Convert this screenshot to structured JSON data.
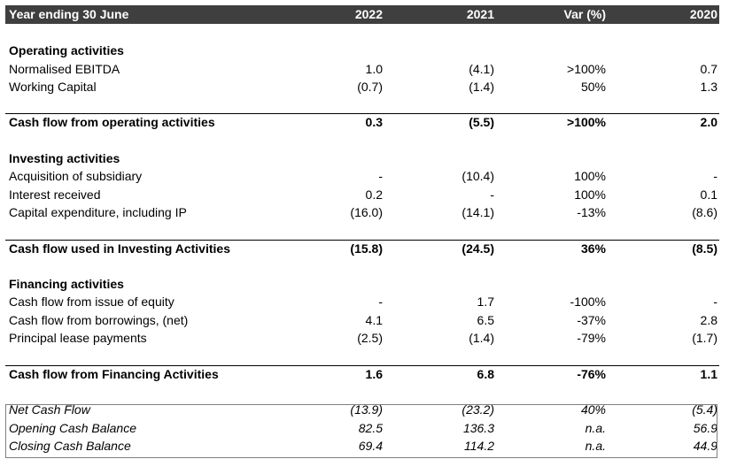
{
  "header": {
    "label": "Year ending 30 June",
    "col_2022": "2022",
    "col_2021": "2021",
    "col_var": "Var (%)",
    "col_2020": "2020"
  },
  "operating": {
    "title": "Operating activities",
    "rows": [
      {
        "label": "Normalised EBITDA",
        "v2022": "1.0",
        "v2021": "(4.1)",
        "var": ">100%",
        "v2020": "0.7"
      },
      {
        "label": "Working Capital",
        "v2022": "(0.7)",
        "v2021": "(1.4)",
        "var": "50%",
        "v2020": "1.3"
      }
    ],
    "total": {
      "label": "Cash flow from operating activities",
      "v2022": "0.3",
      "v2021": "(5.5)",
      "var": ">100%",
      "v2020": "2.0"
    }
  },
  "investing": {
    "title": "Investing activities",
    "rows": [
      {
        "label": "Acquisition of subsidiary",
        "v2022": "-",
        "v2021": "(10.4)",
        "var": "100%",
        "v2020": "-"
      },
      {
        "label": "Interest received",
        "v2022": "0.2",
        "v2021": "-",
        "var": "100%",
        "v2020": "0.1"
      },
      {
        "label": "Capital expenditure, including IP",
        "v2022": "(16.0)",
        "v2021": "(14.1)",
        "var": "-13%",
        "v2020": "(8.6)"
      }
    ],
    "total": {
      "label": "Cash flow used in Investing Activities",
      "v2022": "(15.8)",
      "v2021": "(24.5)",
      "var": "36%",
      "v2020": "(8.5)"
    }
  },
  "financing": {
    "title": "Financing activities",
    "rows": [
      {
        "label": "Cash flow from issue of equity",
        "v2022": "-",
        "v2021": "1.7",
        "var": "-100%",
        "v2020": "-"
      },
      {
        "label": "Cash flow from borrowings, (net)",
        "v2022": "4.1",
        "v2021": "6.5",
        "var": "-37%",
        "v2020": "2.8"
      },
      {
        "label": "Principal lease payments",
        "v2022": "(2.5)",
        "v2021": "(1.4)",
        "var": "-79%",
        "v2020": "(1.7)"
      }
    ],
    "total": {
      "label": "Cash flow from Financing Activities",
      "v2022": "1.6",
      "v2021": "6.8",
      "var": "-76%",
      "v2020": "1.1"
    }
  },
  "summary": {
    "rows": [
      {
        "label": "Net Cash Flow",
        "v2022": "(13.9)",
        "v2021": "(23.2)",
        "var": "40%",
        "v2020": "(5.4)"
      },
      {
        "label": "Opening Cash Balance",
        "v2022": "82.5",
        "v2021": "136.3",
        "var": "n.a.",
        "v2020": "56.9"
      },
      {
        "label": "Closing Cash Balance",
        "v2022": "69.4",
        "v2021": "114.2",
        "var": "n.a.",
        "v2020": "44.9"
      }
    ]
  }
}
